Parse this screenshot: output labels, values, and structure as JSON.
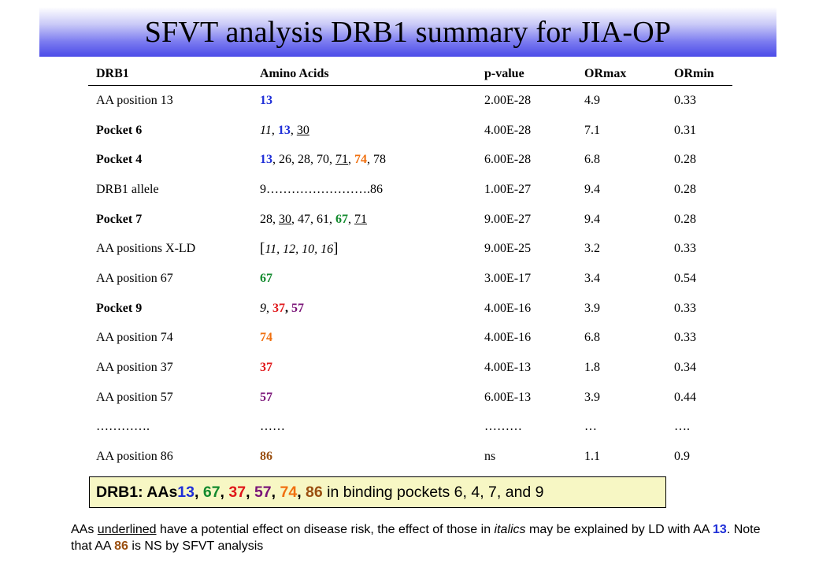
{
  "title": "SFVT analysis DRB1 summary for JIA-OP",
  "table": {
    "headers": [
      "DRB1",
      "Amino Acids",
      "p-value",
      "ORmax",
      "ORmin"
    ],
    "rows": [
      {
        "label": "AA position 13",
        "label_bold": false,
        "aa": [
          {
            "t": "13",
            "c": "c-blue"
          }
        ],
        "p": "2.00E-28",
        "ormax": "4.9",
        "ormin": "0.33"
      },
      {
        "label": "Pocket 6",
        "label_bold": true,
        "aa": [
          {
            "t": "11",
            "c": "ital"
          },
          {
            "t": ", "
          },
          {
            "t": "13",
            "c": "c-blue"
          },
          {
            "t": ", "
          },
          {
            "t": "30",
            "c": "ul"
          }
        ],
        "p": "4.00E-28",
        "ormax": "7.1",
        "ormin": "0.31"
      },
      {
        "label": "Pocket 4",
        "label_bold": true,
        "aa": [
          {
            "t": "13",
            "c": "c-blue"
          },
          {
            "t": ", 26, 28, 70, "
          },
          {
            "t": "71",
            "c": "ul"
          },
          {
            "t": ", "
          },
          {
            "t": "74",
            "c": "c-orange"
          },
          {
            "t": ", 78"
          }
        ],
        "p": "6.00E-28",
        "ormax": "6.8",
        "ormin": "0.28"
      },
      {
        "label": "DRB1 allele",
        "label_bold": false,
        "aa": [
          {
            "t": "9…………………….86"
          }
        ],
        "p": "1.00E-27",
        "ormax": "9.4",
        "ormin": "0.28"
      },
      {
        "label": "Pocket 7",
        "label_bold": true,
        "aa": [
          {
            "t": "28, "
          },
          {
            "t": "30",
            "c": "ul"
          },
          {
            "t": ", 47, 61, "
          },
          {
            "t": "67",
            "c": "c-green"
          },
          {
            "t": ", "
          },
          {
            "t": "71",
            "c": "ul"
          }
        ],
        "p": "9.00E-27",
        "ormax": "9.4",
        "ormin": "0.28"
      },
      {
        "label": "AA positions X-LD",
        "label_bold": false,
        "aa": [
          {
            "t": "[",
            "c": "bracket"
          },
          {
            "t": "11, 12, 10, 16",
            "c": "ital"
          },
          {
            "t": "]",
            "c": "bracket"
          }
        ],
        "p": "9.00E-25",
        "ormax": "3.2",
        "ormin": "0.33"
      },
      {
        "label": "AA position 67",
        "label_bold": false,
        "aa": [
          {
            "t": "67",
            "c": "c-green"
          }
        ],
        "p": "3.00E-17",
        "ormax": "3.4",
        "ormin": "0.54"
      },
      {
        "label": "Pocket 9",
        "label_bold": true,
        "aa": [
          {
            "t": "9",
            "c": "ital"
          },
          {
            "t": ", "
          },
          {
            "t": "37",
            "c": "c-red"
          },
          {
            "t": ", ",
            "c": "bold"
          },
          {
            "t": "57",
            "c": "c-purple"
          }
        ],
        "p": "4.00E-16",
        "ormax": "3.9",
        "ormin": "0.33"
      },
      {
        "label": "AA position 74",
        "label_bold": false,
        "aa": [
          {
            "t": "74",
            "c": "c-orange"
          }
        ],
        "p": "4.00E-16",
        "ormax": "6.8",
        "ormin": "0.33"
      },
      {
        "label": "AA position 37",
        "label_bold": false,
        "aa": [
          {
            "t": "37",
            "c": "c-red"
          }
        ],
        "p": "4.00E-13",
        "ormax": "1.8",
        "ormin": "0.34"
      },
      {
        "label": "AA position 57",
        "label_bold": false,
        "aa": [
          {
            "t": "57",
            "c": "c-purple"
          }
        ],
        "p": "6.00E-13",
        "ormax": "3.9",
        "ormin": "0.44"
      },
      {
        "label": "………….",
        "label_bold": false,
        "aa": [
          {
            "t": "……"
          }
        ],
        "p": "………",
        "ormax": "…",
        "ormin": "…."
      },
      {
        "label": "AA position 86",
        "label_bold": false,
        "aa": [
          {
            "t": "86",
            "c": "c-brown"
          }
        ],
        "p": "ns",
        "ormax": "1.1",
        "ormin": "0.9"
      }
    ]
  },
  "summary": {
    "lead": "DRB1: AAs",
    "numbers": [
      {
        "t": "13",
        "c": "c-blue"
      },
      {
        "t": "67",
        "c": "c-green"
      },
      {
        "t": "37",
        "c": "c-red"
      },
      {
        "t": "57",
        "c": "c-purple"
      },
      {
        "t": "74",
        "c": "c-orange"
      },
      {
        "t": "86",
        "c": "c-brown"
      }
    ],
    "tail": "in binding pockets 6, 4, 7, and 9"
  },
  "footnote": {
    "part1": "AAs ",
    "underlined": "underlined",
    "part2": " have a potential effect on disease risk, the effect of those in ",
    "italics": "italics",
    "part3": " may be explained by LD with AA ",
    "aa13": "13",
    "part4": ". Note that AA ",
    "aa86": "86",
    "part5": " is NS by SFVT analysis"
  },
  "colors": {
    "blue": "#1f2fd8",
    "green": "#138a2e",
    "red": "#e0181b",
    "purple": "#7a1478",
    "orange": "#f07010",
    "brown": "#9a4f10",
    "summary_bg": "#f7f7c4",
    "title_gradient_end": "#4b4be8"
  }
}
